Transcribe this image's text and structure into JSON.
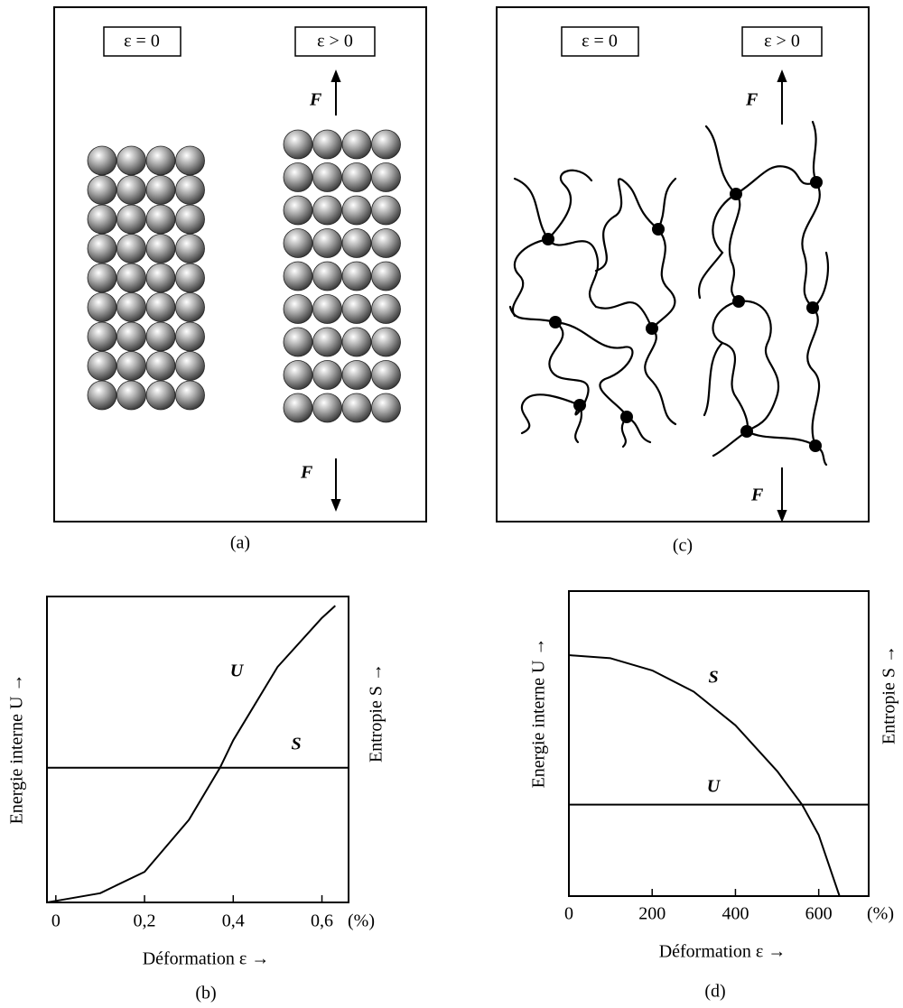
{
  "diagram_a": {
    "label_left": "ε = 0",
    "label_right": "ε > 0",
    "force_top": "F",
    "force_bottom": "F",
    "caption": "(a)"
  },
  "diagram_c": {
    "label_left": "ε = 0",
    "label_right": "ε > 0",
    "force_top": "F",
    "force_bottom": "F",
    "caption": "(c)"
  },
  "chart_data": [
    {
      "type": "line",
      "caption": "(b)",
      "xlabel": "Déformation ε →",
      "ylabel": "Energie interne U →",
      "y2label": "Entropie S →",
      "x_unit": "(%)",
      "x": [
        -0.02,
        0,
        0.1,
        0.2,
        0.3,
        0.37,
        0.4,
        0.5,
        0.6,
        0.63,
        0.66
      ],
      "xlim": [
        -0.02,
        0.66
      ],
      "xticks": [
        0,
        {
          "value": 0.2,
          "label": "0,2"
        },
        {
          "value": 0.4,
          "label": "0,4"
        },
        {
          "value": 0.6,
          "label": "0,6"
        }
      ],
      "ylim": [
        0,
        1
      ],
      "y2lim": [
        0,
        1
      ],
      "series": [
        {
          "name": "U",
          "color": "#000000",
          "values": [
            0,
            0.005,
            0.03,
            0.1,
            0.27,
            0.44,
            0.53,
            0.77,
            0.93,
            0.97,
            null
          ]
        },
        {
          "name": "S",
          "color": "#000000",
          "axis": "y2",
          "values": [
            0.44,
            0.44,
            0.44,
            0.44,
            0.44,
            0.44,
            0.44,
            0.44,
            0.44,
            0.44,
            0.44
          ]
        }
      ]
    },
    {
      "type": "line",
      "caption": "(d)",
      "xlabel": "Déformation ε →",
      "ylabel": "Energie interne U →",
      "y2label": "Entropie S →",
      "x_unit": "(%)",
      "x": [
        0,
        100,
        200,
        300,
        400,
        500,
        560,
        600,
        650,
        720
      ],
      "xlim": [
        0,
        720
      ],
      "xticks": [
        0,
        200,
        400,
        600
      ],
      "ylim": [
        0,
        1
      ],
      "y2lim": [
        0,
        1
      ],
      "series": [
        {
          "name": "S",
          "color": "#000000",
          "axis": "y2",
          "values": [
            0.79,
            0.78,
            0.74,
            0.67,
            0.56,
            0.41,
            0.3,
            0.2,
            0,
            null
          ]
        },
        {
          "name": "U",
          "color": "#000000",
          "values": [
            0.3,
            0.3,
            0.3,
            0.3,
            0.3,
            0.3,
            0.3,
            0.3,
            0.3,
            0.3
          ]
        }
      ]
    }
  ]
}
